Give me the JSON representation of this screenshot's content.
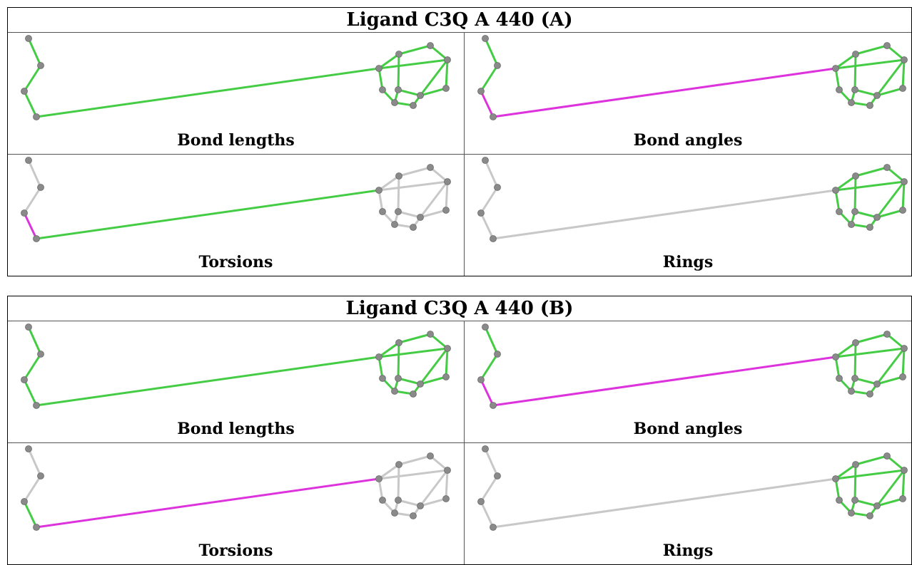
{
  "panels": [
    {
      "title": "Ligand C3Q A 440 (A)",
      "cells": [
        {
          "label": "Bond lengths",
          "colors": {
            "chain": "#44cc44",
            "kink": "#44cc44",
            "link": "#44cc44",
            "ring": "#44cc44"
          }
        },
        {
          "label": "Bond angles",
          "colors": {
            "chain": "#44cc44",
            "kink": "#dd33dd",
            "link": "#dd33dd",
            "ring": "#44cc44"
          }
        },
        {
          "label": "Torsions",
          "colors": {
            "chain": "#c8c8c8",
            "kink": "#dd33dd",
            "link": "#44cc44",
            "ring": "#c8c8c8"
          }
        },
        {
          "label": "Rings",
          "colors": {
            "chain": "#c8c8c8",
            "kink": "#c8c8c8",
            "link": "#c8c8c8",
            "ring": "#44cc44"
          }
        }
      ]
    },
    {
      "title": "Ligand C3Q A 440 (B)",
      "cells": [
        {
          "label": "Bond lengths",
          "colors": {
            "chain": "#44cc44",
            "kink": "#44cc44",
            "link": "#44cc44",
            "ring": "#44cc44"
          }
        },
        {
          "label": "Bond angles",
          "colors": {
            "chain": "#44cc44",
            "kink": "#dd33dd",
            "link": "#dd33dd",
            "ring": "#44cc44"
          }
        },
        {
          "label": "Torsions",
          "colors": {
            "chain": "#c8c8c8",
            "kink": "#44cc44",
            "link": "#dd33dd",
            "ring": "#c8c8c8"
          }
        },
        {
          "label": "Rings",
          "colors": {
            "chain": "#c8c8c8",
            "kink": "#c8c8c8",
            "link": "#c8c8c8",
            "ring": "#44cc44"
          }
        }
      ]
    }
  ],
  "atom_color": "#8a8a8a"
}
